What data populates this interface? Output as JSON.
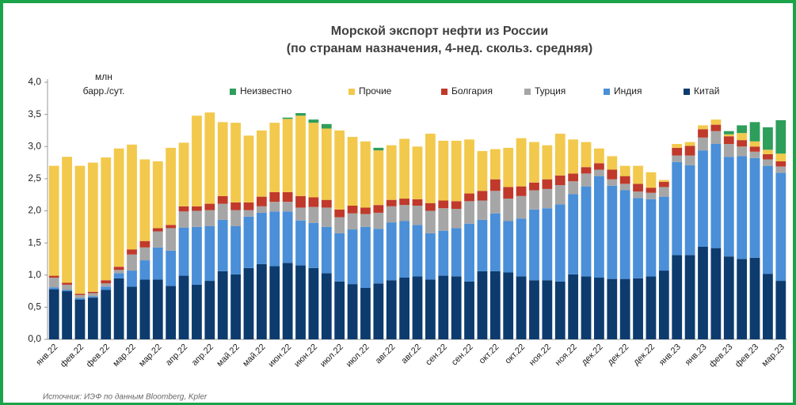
{
  "chart_data": {
    "type": "stacked_bar",
    "title": "Морской экспорт нефти из России",
    "subtitle": "(по странам назначения, 4-нед. скольз. средняя)",
    "ylabel": [
      "млн",
      "барр./сут."
    ],
    "source": "Источник: ИЭФ по данным Bloomberg, Kpler",
    "legend": "top",
    "ylim": [
      0,
      4
    ],
    "yticks": [
      {
        "value": 0,
        "label": "0,0"
      },
      {
        "value": 0.5,
        "label": "0,5"
      },
      {
        "value": 1,
        "label": "1,0"
      },
      {
        "value": 1.5,
        "label": "1,5"
      },
      {
        "value": 2,
        "label": "2,0"
      },
      {
        "value": 2.5,
        "label": "2,5"
      },
      {
        "value": 3,
        "label": "3,0"
      },
      {
        "value": 3.5,
        "label": "3,5"
      },
      {
        "value": 4,
        "label": "4,0"
      }
    ],
    "categories": [
      "янв.22",
      null,
      "фев.22",
      null,
      "фев.22",
      null,
      "мар.22",
      null,
      "мар.22",
      null,
      "апр.22",
      null,
      "апр.22",
      null,
      "май.22",
      null,
      "май.22",
      null,
      "июн.22",
      null,
      "июн.22",
      null,
      "июл.22",
      null,
      "июл.22",
      null,
      "авг.22",
      null,
      "авг.22",
      null,
      "сен.22",
      null,
      "сен.22",
      null,
      "окт.22",
      null,
      "окт.22",
      null,
      "ноя.22",
      null,
      "ноя.22",
      null,
      "дек.22",
      null,
      "дек.22",
      null,
      "дек.22",
      null,
      "янв.23",
      null,
      "янв.23",
      null,
      "фев.23",
      null,
      "фев.23",
      null,
      "мар.23"
    ],
    "series": [
      {
        "name": "Китай",
        "color": "#0d3b6e",
        "values": [
          0.78,
          0.75,
          0.62,
          0.65,
          0.77,
          0.95,
          0.82,
          0.93,
          0.93,
          0.83,
          0.99,
          0.85,
          0.91,
          1.06,
          1.01,
          1.11,
          1.17,
          1.14,
          1.19,
          1.15,
          1.11,
          1.03,
          0.9,
          0.86,
          0.8,
          0.87,
          0.92,
          0.96,
          0.98,
          0.93,
          0.99,
          0.98,
          0.9,
          1.06,
          1.06,
          1.04,
          0.98,
          0.92,
          0.92,
          0.9,
          1.01,
          0.98,
          0.96,
          0.94,
          0.94,
          0.95,
          0.98,
          1.07,
          1.31,
          1.31,
          1.44,
          1.42,
          1.29,
          1.25,
          1.27,
          1.02,
          0.91
        ]
      },
      {
        "name": "Индия",
        "color": "#4a8fd8",
        "values": [
          0.03,
          0.02,
          0.02,
          0.02,
          0.05,
          0.08,
          0.25,
          0.3,
          0.5,
          0.55,
          0.75,
          0.9,
          0.85,
          0.8,
          0.75,
          0.8,
          0.8,
          0.85,
          0.8,
          0.7,
          0.7,
          0.72,
          0.75,
          0.85,
          0.95,
          0.85,
          0.9,
          0.88,
          0.8,
          0.72,
          0.7,
          0.75,
          0.9,
          0.8,
          0.9,
          0.8,
          0.9,
          1.1,
          1.12,
          1.2,
          1.25,
          1.4,
          1.58,
          1.45,
          1.38,
          1.25,
          1.2,
          1.15,
          1.45,
          1.4,
          1.5,
          1.62,
          1.55,
          1.6,
          1.55,
          1.68,
          1.68
        ]
      },
      {
        "name": "Турция",
        "color": "#a6a6a6",
        "values": [
          0.15,
          0.08,
          0.05,
          0.05,
          0.05,
          0.05,
          0.25,
          0.2,
          0.25,
          0.35,
          0.25,
          0.25,
          0.25,
          0.25,
          0.25,
          0.1,
          0.1,
          0.15,
          0.15,
          0.2,
          0.25,
          0.3,
          0.25,
          0.25,
          0.2,
          0.25,
          0.25,
          0.25,
          0.3,
          0.35,
          0.35,
          0.3,
          0.35,
          0.3,
          0.35,
          0.35,
          0.35,
          0.3,
          0.3,
          0.3,
          0.2,
          0.2,
          0.1,
          0.1,
          0.1,
          0.1,
          0.1,
          0.15,
          0.1,
          0.15,
          0.2,
          0.2,
          0.2,
          0.15,
          0.1,
          0.1,
          0.1
        ]
      },
      {
        "name": "Болгария",
        "color": "#c0392b",
        "values": [
          0.03,
          0.03,
          0.02,
          0.02,
          0.05,
          0.05,
          0.08,
          0.1,
          0.05,
          0.05,
          0.08,
          0.07,
          0.1,
          0.12,
          0.12,
          0.12,
          0.15,
          0.15,
          0.15,
          0.18,
          0.15,
          0.12,
          0.12,
          0.12,
          0.1,
          0.12,
          0.1,
          0.1,
          0.1,
          0.12,
          0.12,
          0.12,
          0.12,
          0.15,
          0.18,
          0.18,
          0.15,
          0.12,
          0.15,
          0.15,
          0.12,
          0.1,
          0.1,
          0.15,
          0.12,
          0.12,
          0.08,
          0.08,
          0.12,
          0.15,
          0.13,
          0.1,
          0.12,
          0.1,
          0.08,
          0.08,
          0.08
        ]
      },
      {
        "name": "Прочие",
        "color": "#f2c94c",
        "values": [
          1.71,
          1.96,
          1.99,
          2.01,
          1.91,
          1.84,
          1.63,
          1.27,
          1.04,
          1.2,
          0.99,
          1.41,
          1.42,
          1.15,
          1.24,
          1.04,
          1.03,
          1.08,
          1.14,
          1.25,
          1.16,
          1.11,
          1.23,
          1.07,
          1.03,
          0.85,
          0.85,
          0.93,
          0.82,
          1.08,
          0.93,
          0.94,
          0.84,
          0.62,
          0.47,
          0.61,
          0.75,
          0.63,
          0.53,
          0.65,
          0.53,
          0.39,
          0.23,
          0.21,
          0.16,
          0.28,
          0.24,
          0.03,
          0.06,
          0.06,
          0.06,
          0.08,
          0.03,
          0.11,
          0.08,
          0.07,
          0.12
        ]
      },
      {
        "name": "Неизвестно",
        "color": "#2e9e5b",
        "values": [
          0,
          0,
          0,
          0,
          0,
          0,
          0,
          0,
          0,
          0,
          0,
          0,
          0,
          0,
          0,
          0,
          0,
          0,
          0.02,
          0.04,
          0.05,
          0.07,
          0,
          0,
          0,
          0.04,
          0,
          0,
          0,
          0,
          0,
          0,
          0,
          0,
          0,
          0,
          0,
          0,
          0,
          0,
          0,
          0,
          0,
          0,
          0,
          0,
          0,
          0,
          0,
          0,
          0,
          0,
          0.05,
          0.12,
          0.3,
          0.35,
          0.52
        ]
      }
    ]
  }
}
